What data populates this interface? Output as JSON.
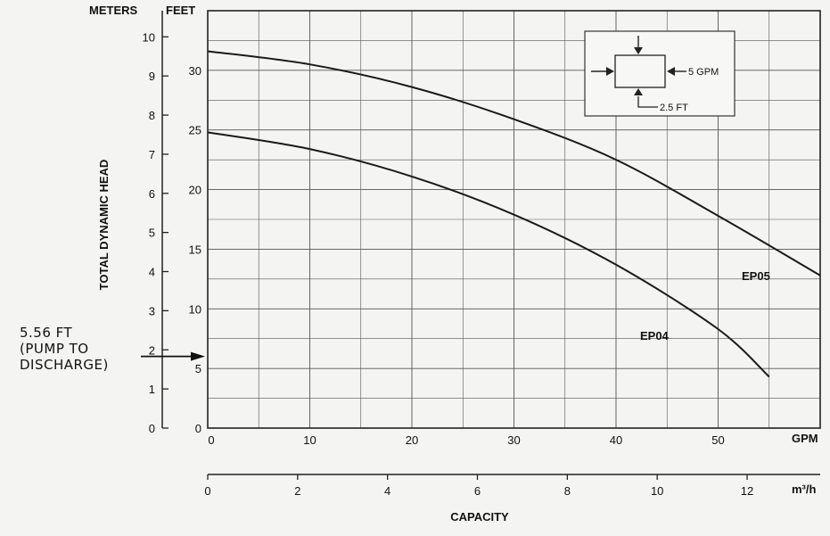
{
  "chart_data": {
    "type": "line",
    "title": "",
    "xlabel": "CAPACITY",
    "ylabel": "TOTAL DYNAMIC HEAD",
    "x_unit_primary": "GPM",
    "x_unit_secondary": "m³/h",
    "y_unit_left": "METERS",
    "y_unit_right": "FEET",
    "xlim_gpm": [
      0,
      60
    ],
    "ylim_feet": [
      0,
      35
    ],
    "ylim_meters": [
      0,
      10.67
    ],
    "grid": true,
    "gpm_ticks": [
      "0",
      "10",
      "20",
      "30",
      "40",
      "50"
    ],
    "m3h_ticks": [
      "0",
      "2",
      "4",
      "6",
      "8",
      "10",
      "12"
    ],
    "meter_ticks": [
      "0",
      "1",
      "2",
      "3",
      "4",
      "5",
      "6",
      "7",
      "8",
      "9",
      "10"
    ],
    "feet_ticks": [
      "0",
      "5",
      "10",
      "15",
      "20",
      "25",
      "30"
    ],
    "series": [
      {
        "name": "EP05",
        "x": [
          0,
          10,
          20,
          30,
          40,
          50,
          60
        ],
        "y": [
          31.6,
          30.5,
          28.6,
          25.9,
          22.5,
          17.8,
          12.8
        ]
      },
      {
        "name": "EP04",
        "x": [
          0,
          10,
          20,
          30,
          40,
          50,
          55
        ],
        "y": [
          24.8,
          23.4,
          21.1,
          17.9,
          13.7,
          8.3,
          4.3
        ]
      }
    ],
    "annotations": {
      "discharge_note": [
        "5.56 FT",
        "(PUMP TO",
        "DISCHARGE)"
      ],
      "discharge_value_ft": 5.56,
      "inset_flow_label": "5 GPM",
      "inset_height_label": "2.5 FT"
    }
  }
}
